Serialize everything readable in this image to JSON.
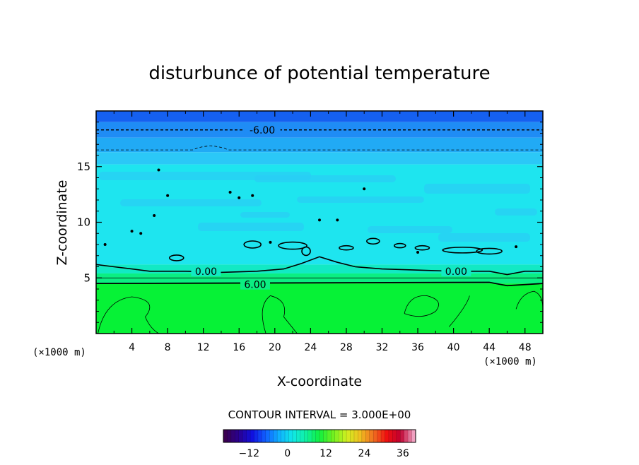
{
  "chart_data": {
    "type": "heatmap",
    "title": "disturbunce of potential temperature",
    "xlabel": "X-coordinate",
    "ylabel": "Z-coordinate",
    "x_unit_left": "(×1000 m)",
    "x_unit_right": "(×1000 m)",
    "xlim": [
      0,
      50
    ],
    "ylim": [
      0,
      20
    ],
    "x_ticks": [
      4,
      8,
      12,
      16,
      20,
      24,
      28,
      32,
      36,
      40,
      44,
      48
    ],
    "y_ticks": [
      5,
      10,
      15
    ],
    "contour_interval_label": "CONTOUR INTERVAL = 3.000E+00",
    "contour_interval": 3.0,
    "contour_labels": [
      {
        "text": "-6.00",
        "x": 18.6,
        "z": 18.3
      },
      {
        "text": "0.00",
        "x": 12.3,
        "z": 5.6
      },
      {
        "text": "0.00",
        "x": 40.3,
        "z": 5.6
      },
      {
        "text": "6.00",
        "x": 17.8,
        "z": 4.4
      }
    ],
    "layers": [
      {
        "z_from": 19.0,
        "z_to": 20.0,
        "value": -6,
        "color": "#1560f0"
      },
      {
        "z_from": 17.6,
        "z_to": 19.0,
        "value": -5,
        "color": "#1f8cf5"
      },
      {
        "z_from": 16.3,
        "z_to": 17.6,
        "value": -3,
        "color": "#21aaf5"
      },
      {
        "z_from": 15.2,
        "z_to": 16.3,
        "value": -2,
        "color": "#2bc8f7"
      },
      {
        "z_from": 6.2,
        "z_to": 15.2,
        "value": -1,
        "color": "#1ee5ef"
      },
      {
        "z_from": 5.4,
        "z_to": 6.2,
        "value": 0,
        "color": "#12e9c4"
      },
      {
        "z_from": 4.5,
        "z_to": 5.4,
        "value": 3,
        "color": "#0bee82"
      },
      {
        "z_from": 0.0,
        "z_to": 4.5,
        "value": 6,
        "color": "#06f236"
      }
    ],
    "colorbar": {
      "range": [
        -20,
        40
      ],
      "ticks": [
        -12,
        0,
        12,
        24,
        36
      ],
      "colors": [
        "#3a0050",
        "#2a0090",
        "#1010e0",
        "#1060ff",
        "#10b0ff",
        "#10e8e8",
        "#10f0a0",
        "#10f040",
        "#70f020",
        "#d0f020",
        "#f0c020",
        "#f07020",
        "#f01010",
        "#c00030",
        "#f0a0c0"
      ]
    }
  }
}
